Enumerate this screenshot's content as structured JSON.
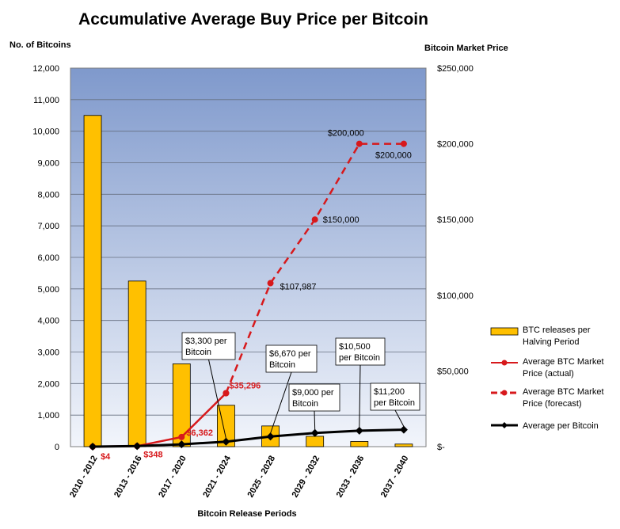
{
  "chart_data": {
    "type": "bar",
    "title": "Accumulative Average Buy Price per Bitcoin",
    "xlabel": "Bitcoin  Release Periods",
    "ylabel": "No. of Bitcoins",
    "y2label": "Bitcoin  Market Price",
    "ylim": [
      0,
      12000
    ],
    "y2lim": [
      0,
      250000
    ],
    "yticks": [
      "0",
      "1,000",
      "2,000",
      "3,000",
      "4,000",
      "5,000",
      "6,000",
      "7,000",
      "8,000",
      "9,000",
      "10,000",
      "11,000",
      "12,000"
    ],
    "y2ticks": [
      "$-",
      "$50,000",
      "$100,000",
      "$150,000",
      "$200,000",
      "$250,000"
    ],
    "categories": [
      "2010 - 2012",
      "2013 - 2016",
      "2017 - 2020",
      "2021 - 2024",
      "2025 - 2028",
      "2029 - 2032",
      "2033 - 2036",
      "2037 - 2040"
    ],
    "series": [
      {
        "name": "BTC releases per Halving Period",
        "kind": "bar",
        "axis": "left",
        "color": "#ffc000",
        "values": [
          10500,
          5250,
          2625,
          1312,
          656,
          328,
          164,
          82
        ]
      },
      {
        "name": "Average BTC Market Price (actual)",
        "kind": "line",
        "axis": "right",
        "color": "#d7191c",
        "values": [
          4,
          348,
          6362,
          35296,
          null,
          null,
          null,
          null
        ],
        "labels": [
          "$4",
          "$348",
          "$6,362",
          "$35,296"
        ]
      },
      {
        "name": "Average BTC Market Price (forecast)",
        "kind": "dashed-line",
        "axis": "right",
        "color": "#d7191c",
        "values": [
          null,
          null,
          null,
          35296,
          107987,
          150000,
          200000,
          200000
        ],
        "labels": [
          "$107,987",
          "$150,000",
          "$200,000",
          "$200,000"
        ]
      },
      {
        "name": "Average per Bitcoin",
        "kind": "line",
        "axis": "right",
        "color": "#000000",
        "values": [
          4,
          348,
          1500,
          3300,
          6670,
          9000,
          10500,
          11200
        ]
      }
    ],
    "callouts": [
      {
        "line1": "$3,300 per",
        "line2": "Bitcoin"
      },
      {
        "line1": "$6,670 per",
        "line2": "Bitcoin"
      },
      {
        "line1": "$9,000 per",
        "line2": "Bitcoin"
      },
      {
        "line1": "$10,500",
        "line2": "per Bitcoin"
      },
      {
        "line1": "$11,200",
        "line2": "per Bitcoin"
      }
    ],
    "legend": [
      {
        "line1": "BTC releases per",
        "line2": "Halving Period"
      },
      {
        "line1": "Average BTC Market",
        "line2": "Price (actual)"
      },
      {
        "line1": "Average BTC Market",
        "line2": "Price (forecast)"
      },
      {
        "line1": "Average per Bitcoin",
        "line2": ""
      }
    ],
    "legend_position": "right",
    "grid": true
  }
}
